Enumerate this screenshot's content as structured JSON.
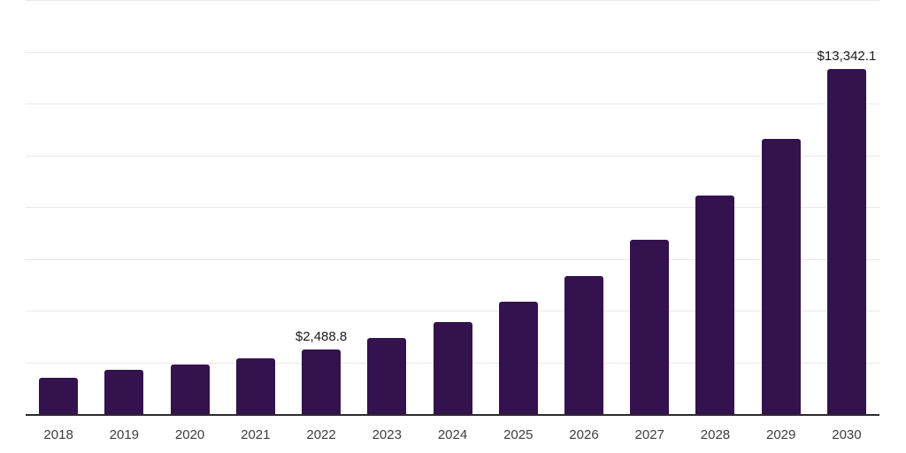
{
  "page": {
    "background": "#ffffff"
  },
  "chart_data": {
    "type": "bar",
    "title": "",
    "xlabel": "",
    "ylabel": "",
    "categories": [
      "2018",
      "2019",
      "2020",
      "2021",
      "2022",
      "2023",
      "2024",
      "2025",
      "2026",
      "2027",
      "2028",
      "2029",
      "2030"
    ],
    "values": [
      1390,
      1705,
      1910,
      2140,
      2488.8,
      2940,
      3540,
      4335,
      5345,
      6720,
      8455,
      10645,
      13342.1
    ],
    "data_labels": [
      "",
      "",
      "",
      "",
      "$2,488.8",
      "",
      "",
      "",
      "",
      "",
      "",
      "",
      "$13,342.1"
    ],
    "ylim": [
      0,
      16000
    ],
    "gridline_interval": 2000,
    "grid": true,
    "legend": "none",
    "colors": {
      "bar": "#33124e",
      "axis_line": "#2b2b2b",
      "gridline": "#e9e9e9",
      "data_label": "#1a1a1a",
      "tick_label": "#3d3d3d"
    }
  }
}
